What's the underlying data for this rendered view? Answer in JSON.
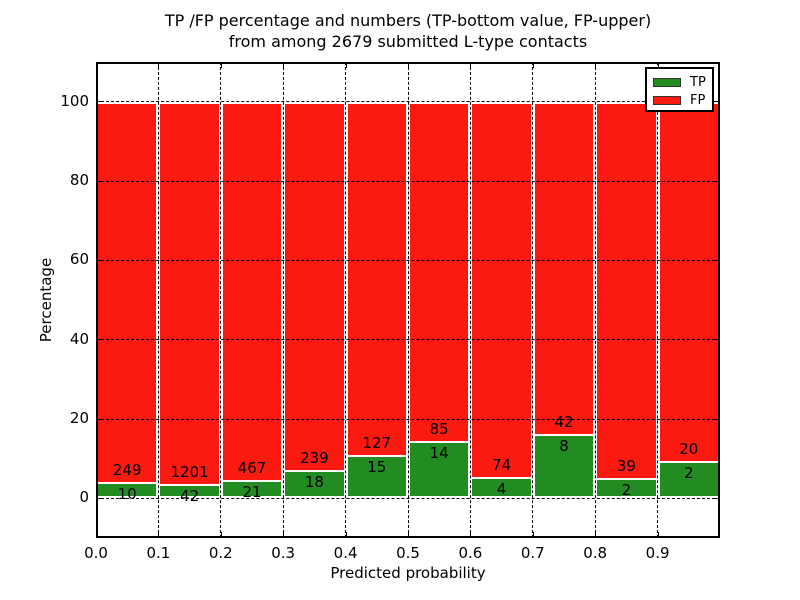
{
  "title": {
    "line1": "TP /FP percentage and numbers (TP-bottom value, FP-upper)",
    "line2": "from among 2679 submitted L-type contacts"
  },
  "chart_data": {
    "type": "bar",
    "stacked": true,
    "normalized": "each bin scaled to 100%",
    "title": "TP /FP percentage and numbers (TP-bottom value, FP-upper) from among 2679 submitted L-type contacts",
    "xlabel": "Predicted probability",
    "ylabel": "Percentage",
    "xlim": [
      0.0,
      1.0
    ],
    "ylim": [
      -10,
      110
    ],
    "x_tick_labels": [
      "0.0",
      "0.1",
      "0.2",
      "0.3",
      "0.4",
      "0.5",
      "0.6",
      "0.7",
      "0.8",
      "0.9"
    ],
    "y_tick_values": [
      0,
      20,
      40,
      60,
      80,
      100
    ],
    "bin_width": 0.1,
    "bin_starts": [
      0.0,
      0.1,
      0.2,
      0.3,
      0.4,
      0.5,
      0.6,
      0.7,
      0.8,
      0.9
    ],
    "series": [
      {
        "name": "TP",
        "color": "#228b22",
        "counts": [
          10,
          42,
          21,
          18,
          15,
          14,
          4,
          8,
          2,
          2
        ]
      },
      {
        "name": "FP",
        "color": "#fa1a0f",
        "counts": [
          249,
          1201,
          467,
          239,
          127,
          85,
          74,
          42,
          39,
          20
        ]
      }
    ],
    "tp_percent_of_bin": [
      3.86,
      3.38,
      4.3,
      7.0,
      10.56,
      14.14,
      5.13,
      16.0,
      4.88,
      9.09
    ],
    "total_contacts": 2679,
    "legend": {
      "position": "upper right",
      "entries": [
        "TP",
        "FP"
      ]
    },
    "grid": {
      "visible": true,
      "style": "dashed",
      "drawn_above_bars": true
    }
  }
}
